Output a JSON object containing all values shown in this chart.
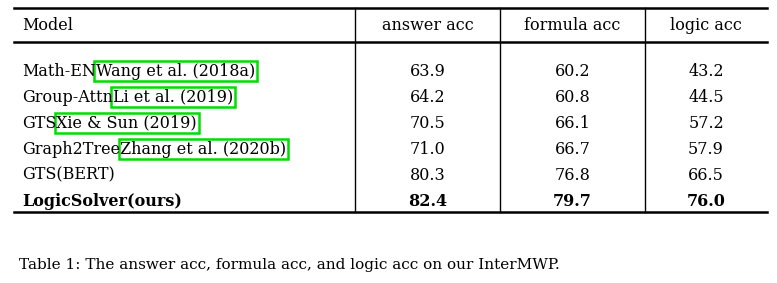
{
  "title": "Table 1: The answer acc, formula acc, and logic acc on our InterMWP.",
  "col_headers": [
    "Model",
    "answer acc",
    "formula acc",
    "logic acc"
  ],
  "rows": [
    {
      "model": "Math-EN",
      "cite": "Wang et al. (2018a)",
      "answer": "63.9",
      "formula": "60.2",
      "logic": "43.2",
      "bold": false
    },
    {
      "model": "Group-Attn",
      "cite": "Li et al. (2019)",
      "answer": "64.2",
      "formula": "60.8",
      "logic": "44.5",
      "bold": false
    },
    {
      "model": "GTS",
      "cite": "Xie & Sun (2019)",
      "answer": "70.5",
      "formula": "66.1",
      "logic": "57.2",
      "bold": false
    },
    {
      "model": "Graph2Tree",
      "cite": "Zhang et al. (2020b)",
      "answer": "71.0",
      "formula": "66.7",
      "logic": "57.9",
      "bold": false
    },
    {
      "model": "GTS(BERT)",
      "cite": "",
      "answer": "80.3",
      "formula": "76.8",
      "logic": "66.5",
      "bold": false
    },
    {
      "model": "LogicSolver(ours)",
      "cite": "",
      "answer": "82.4",
      "formula": "79.7",
      "logic": "76.0",
      "bold": true
    }
  ],
  "box_color": "#00dd00",
  "background_color": "#ffffff",
  "figsize": [
    7.77,
    2.83
  ],
  "dpi": 100,
  "font_size": 11.5,
  "caption_font_size": 11.0
}
